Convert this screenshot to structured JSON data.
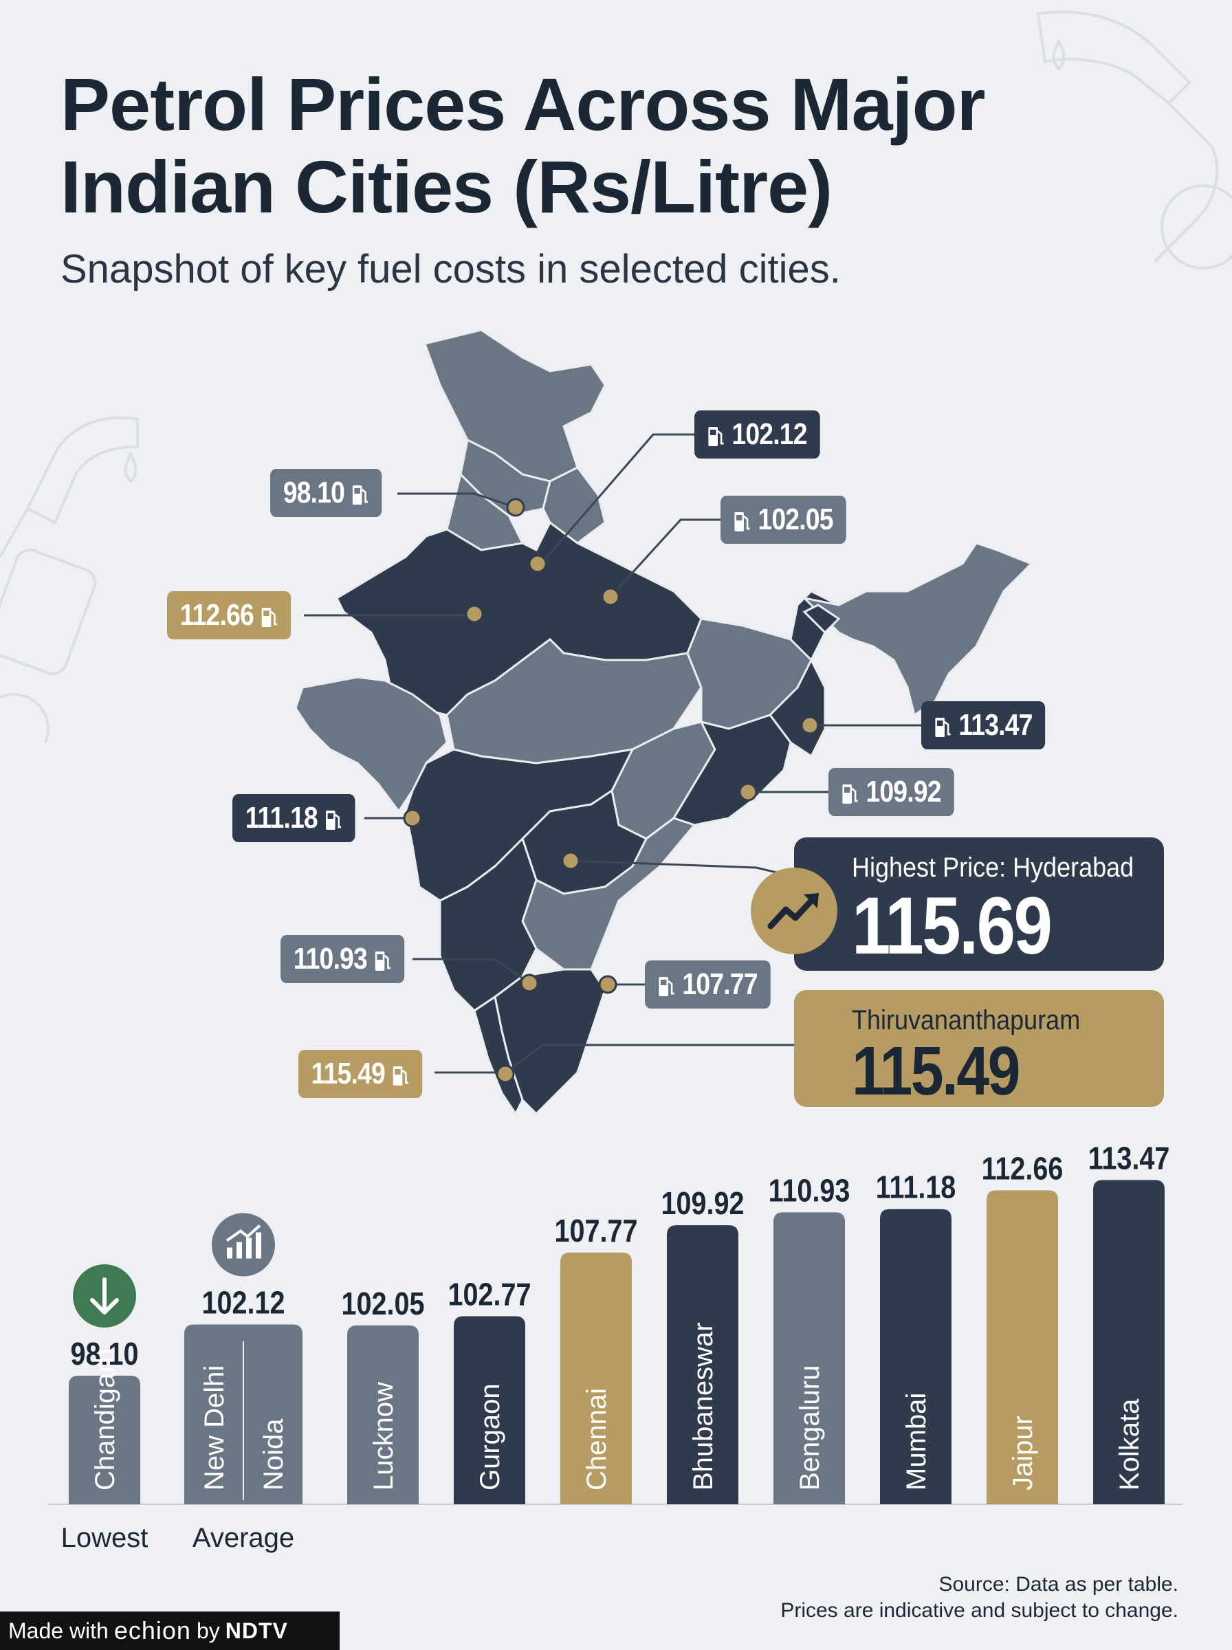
{
  "header": {
    "title": "Petrol Prices Across Major Indian Cities (Rs/Litre)",
    "subtitle": "Snapshot of key fuel costs in selected cities."
  },
  "map_tags": [
    {
      "id": "delhi",
      "value": "102.12",
      "style": "dark"
    },
    {
      "id": "chandigarh",
      "value": "98.10",
      "style": "gray"
    },
    {
      "id": "lucknow",
      "value": "102.05",
      "style": "gray"
    },
    {
      "id": "jaipur",
      "value": "112.66",
      "style": "gold"
    },
    {
      "id": "kolkata",
      "value": "113.47",
      "style": "dark"
    },
    {
      "id": "bhubaneswar",
      "value": "109.92",
      "style": "gray"
    },
    {
      "id": "mumbai",
      "value": "111.18",
      "style": "dark"
    },
    {
      "id": "bengaluru",
      "value": "110.93",
      "style": "gray"
    },
    {
      "id": "chennai",
      "value": "107.77",
      "style": "gray"
    },
    {
      "id": "thiru",
      "value": "115.49",
      "style": "gold"
    }
  ],
  "callouts": {
    "highest_label": "Highest Price: Hyderabad",
    "highest_value": "115.69",
    "second_label": "Thiruvananthapuram",
    "second_value": "115.49"
  },
  "chart_data": {
    "type": "bar",
    "categories": [
      "Chandigarh",
      "New Delhi / Noida",
      "Lucknow",
      "Gurgaon",
      "Chennai",
      "Bhubaneswar",
      "Bengaluru",
      "Mumbai",
      "Jaipur",
      "Kolkata"
    ],
    "category_parts": [
      [
        "Chandigarh"
      ],
      [
        "New Delhi",
        "Noida"
      ],
      [
        "Lucknow"
      ],
      [
        "Gurgaon"
      ],
      [
        "Chennai"
      ],
      [
        "Bhubaneswar"
      ],
      [
        "Bengaluru"
      ],
      [
        "Mumbai"
      ],
      [
        "Jaipur"
      ],
      [
        "Kolkata"
      ]
    ],
    "values": [
      98.1,
      102.12,
      102.05,
      102.77,
      107.77,
      109.92,
      110.93,
      111.18,
      112.66,
      113.47
    ],
    "value_labels": [
      "98.10",
      "102.12",
      "102.05",
      "102.77",
      "107.77",
      "109.92",
      "110.93",
      "111.18",
      "112.66",
      "113.47"
    ],
    "bar_colors": [
      "#6b7684",
      "#6b7684",
      "#6b7684",
      "#2f3a4c",
      "#b69b63",
      "#2f3a4c",
      "#6b7684",
      "#2f3a4c",
      "#b69b63",
      "#2f3a4c"
    ],
    "annotations": [
      {
        "category": "Chandigarh",
        "text": "Lowest",
        "icon": "arrow-down-icon",
        "color": "#3f7a52"
      },
      {
        "category": "New Delhi / Noida",
        "text": "Average",
        "icon": "bar-chart-trend-icon",
        "color": "#6b7684"
      }
    ],
    "title": "",
    "xlabel": "",
    "ylabel": ""
  },
  "colors": {
    "dark": "#2f3a4c",
    "gray": "#6b7684",
    "gold": "#b69b63",
    "background": "#eef0f3"
  },
  "footer": {
    "source_line1": "Source: Data as per table.",
    "source_line2": "Prices are indicative and subject to change.",
    "made_with": "Made with",
    "brand_echion": "echion",
    "brand_by": "by",
    "brand_ndtv": "NDTV"
  }
}
